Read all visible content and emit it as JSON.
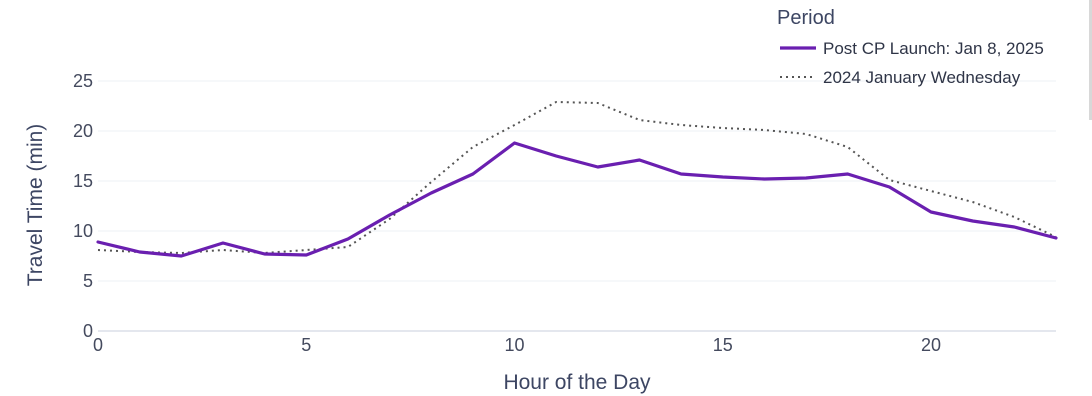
{
  "chart_data": {
    "type": "line",
    "xlabel": "Hour of the Day",
    "ylabel": "Travel Time (min)",
    "xlim": [
      0,
      23
    ],
    "ylim": [
      0,
      25
    ],
    "x_ticks": [
      0,
      5,
      10,
      15,
      20
    ],
    "y_ticks": [
      0,
      5,
      10,
      15,
      20,
      25
    ],
    "grid": "horizontal",
    "legend": {
      "title": "Period",
      "placement": "top-right"
    },
    "x": [
      0,
      1,
      2,
      3,
      4,
      5,
      6,
      7,
      8,
      9,
      10,
      11,
      12,
      13,
      14,
      15,
      16,
      17,
      18,
      19,
      20,
      21,
      22,
      23
    ],
    "series": [
      {
        "name": "Post CP Launch: Jan 8, 2025",
        "color": "#6a1fb0",
        "style": "solid",
        "values": [
          8.9,
          7.9,
          7.5,
          8.8,
          7.7,
          7.6,
          9.2,
          11.6,
          13.8,
          15.7,
          18.8,
          17.5,
          16.4,
          17.1,
          15.7,
          15.4,
          15.2,
          15.3,
          15.7,
          14.4,
          11.9,
          11.0,
          10.4,
          9.3
        ]
      },
      {
        "name": "2024 January Wednesday",
        "color": "#555555",
        "style": "dotted",
        "values": [
          8.1,
          7.9,
          7.8,
          8.1,
          7.8,
          8.1,
          8.4,
          11.2,
          14.9,
          18.4,
          20.6,
          22.9,
          22.8,
          21.1,
          20.6,
          20.3,
          20.1,
          19.7,
          18.4,
          15.1,
          14.0,
          12.9,
          11.4,
          9.4
        ]
      }
    ]
  }
}
